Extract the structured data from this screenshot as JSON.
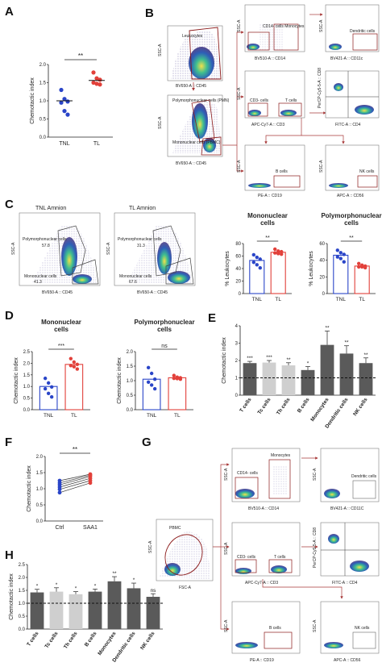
{
  "panel_labels": [
    "A",
    "B",
    "C",
    "D",
    "E",
    "F",
    "G",
    "H"
  ],
  "colors": {
    "blue": "#2a45c8",
    "red": "#e2403a",
    "dark_bar": "#5a5a5a",
    "light_bar": "#cfcfcf",
    "flow_outline": "#8b1a1a",
    "arrow": "#a83a3a"
  },
  "chart_data": [
    {
      "id": "A",
      "type": "scatter",
      "categories": [
        "TNL",
        "TL"
      ],
      "ylabel": "Chemotactic index",
      "ylim": [
        0.0,
        2.0
      ],
      "yticks": [
        "0.0",
        "0.5",
        "1.0",
        "1.5",
        "2.0"
      ],
      "significance": "**",
      "series": [
        {
          "values": [
            1.3,
            1.05,
            0.98,
            0.95,
            0.72,
            0.62
          ],
          "mean": 1.0
        },
        {
          "values": [
            1.78,
            1.62,
            1.58,
            1.5,
            1.47,
            1.45
          ],
          "mean": 1.56
        }
      ]
    },
    {
      "id": "C-mono",
      "type": "bar",
      "title": "Mononuclear cells",
      "categories": [
        "TNL",
        "TL"
      ],
      "ylabel": "% Leukocytes",
      "ylim": [
        0,
        80
      ],
      "yticks": [
        "0",
        "20",
        "40",
        "60",
        "80"
      ],
      "significance": "**",
      "values": [
        53,
        66
      ],
      "points": [
        [
          62,
          58,
          55,
          50,
          46,
          41
        ],
        [
          71,
          68,
          67,
          65,
          64,
          63
        ]
      ]
    },
    {
      "id": "C-poly",
      "type": "bar",
      "title": "Polymorphonuclear cells",
      "categories": [
        "TNL",
        "TL"
      ],
      "ylabel": "% Leukocytes",
      "ylim": [
        0,
        60
      ],
      "yticks": [
        "0",
        "20",
        "40",
        "60"
      ],
      "significance": "**",
      "values": [
        46,
        33
      ],
      "points": [
        [
          52,
          49,
          47,
          44,
          42,
          38
        ],
        [
          36,
          34,
          33,
          32,
          32,
          31
        ]
      ]
    },
    {
      "id": "D-mono",
      "type": "bar",
      "title": "Mononuclear cells",
      "categories": [
        "TNL",
        "TL"
      ],
      "ylabel": "Chemotactic index",
      "ylim": [
        0,
        2.5
      ],
      "yticks": [
        "0.0",
        "0.5",
        "1.0",
        "1.5",
        "2.0",
        "2.5"
      ],
      "significance": "***",
      "values": [
        1.0,
        1.95
      ],
      "points": [
        [
          1.35,
          1.15,
          0.98,
          0.9,
          0.7,
          0.55
        ],
        [
          2.2,
          2.05,
          1.95,
          1.9,
          1.85,
          1.75
        ]
      ]
    },
    {
      "id": "D-poly",
      "type": "bar",
      "title": "Polymorphonuclear cells",
      "categories": [
        "TNL",
        "TL"
      ],
      "ylabel": "Chemotactic index",
      "ylim": [
        0,
        2.0
      ],
      "yticks": [
        "0.0",
        "0.5",
        "1.0",
        "1.5",
        "2.0"
      ],
      "significance": "ns",
      "values": [
        1.05,
        1.1
      ],
      "points": [
        [
          1.45,
          1.25,
          1.05,
          0.95,
          0.85,
          0.72
        ],
        [
          1.18,
          1.12,
          1.1,
          1.08,
          1.07,
          1.05
        ]
      ]
    },
    {
      "id": "E",
      "type": "bar",
      "categories": [
        "T cells",
        "Tc cells",
        "Th cells",
        "B cells",
        "Monocytes",
        "Dendritic cells",
        "NK cells"
      ],
      "ylabel": "Chemotactic index",
      "ylim": [
        0,
        4
      ],
      "yticks": [
        "0",
        "1",
        "2",
        "3",
        "4"
      ],
      "values": [
        1.85,
        1.88,
        1.72,
        1.45,
        2.9,
        2.4,
        1.85
      ],
      "errors": [
        0.1,
        0.12,
        0.15,
        0.2,
        0.8,
        0.45,
        0.3
      ],
      "significance": [
        "***",
        "***",
        "**",
        "*",
        "**",
        "**",
        "**"
      ],
      "reference_line": 1.0
    },
    {
      "id": "F",
      "type": "line",
      "categories": [
        "Ctrl",
        "SAA1"
      ],
      "ylabel": "Chemotactic index",
      "ylim": [
        0.0,
        2.0
      ],
      "yticks": [
        "0.0",
        "0.5",
        "1.0",
        "1.5",
        "2.0"
      ],
      "significance": "**",
      "pairs": [
        [
          1.25,
          1.45
        ],
        [
          1.18,
          1.42
        ],
        [
          1.12,
          1.38
        ],
        [
          1.05,
          1.32
        ],
        [
          0.98,
          1.25
        ],
        [
          0.88,
          1.18
        ]
      ]
    },
    {
      "id": "H",
      "type": "bar",
      "categories": [
        "T cells",
        "Tc cells",
        "Th cells",
        "B cells",
        "Monocytes",
        "Dendritic cells",
        "NK cells"
      ],
      "ylabel": "Chemotactic index",
      "ylim": [
        0.0,
        2.5
      ],
      "yticks": [
        "0.0",
        "0.5",
        "1.0",
        "1.5",
        "2.0",
        "2.5"
      ],
      "values": [
        1.42,
        1.45,
        1.35,
        1.45,
        1.85,
        1.58,
        1.25
      ],
      "errors": [
        0.12,
        0.15,
        0.1,
        0.1,
        0.18,
        0.2,
        0.12
      ],
      "significance": [
        "*",
        "*",
        "*",
        "*",
        "**",
        "*",
        "ns"
      ],
      "reference_line": 1.0
    }
  ],
  "flow_B": {
    "leukocytes_gate": "Leukocytes",
    "pmn_gate": "Polymorphonuclear cells (PMN)",
    "mono_gate": "Mononuclear cells (PBMC)",
    "cd14_gate": "CD14- cells   Monocytes",
    "dc_gate": "Dendritic cells",
    "cd3_gate": "CD3- cells",
    "t_gate": "T cells",
    "b_gate": "B cells",
    "nk_gate": "NK cells",
    "axes": {
      "ssc": "SSC-A",
      "cd45": "BV650-A :: CD45",
      "cd14": "BV510-A :: CD14",
      "cd11c": "BV421-A :: CD11c",
      "cd3": "APC-Cy7-A :: CD3",
      "cd4": "FITC-A :: CD4",
      "cd8": "PerCP-Cy5-5-A :: CD8",
      "cd19": "PE-A :: CD19",
      "cd56": "APC-A :: CD56"
    }
  },
  "flow_C": {
    "left_title": "TNL Amnion",
    "right_title": "TL Amnion",
    "ssc": "SSC-A",
    "cd45": "BV650-A :: CD45",
    "left_poly_label": "Polymorphonuclear cells",
    "left_poly_pct": "57.8",
    "left_mono_label": "Mononuclear cells",
    "left_mono_pct": "41.3",
    "right_poly_label": "Polymorphonuclear cells",
    "right_poly_pct": "31.3",
    "right_mono_label": "Mononuclear cells",
    "right_mono_pct": "67.6"
  },
  "flow_G": {
    "pbmc_gate": "PBMC",
    "monocytes_gate": "Monocytes",
    "cd14_gate": "CD14- cells",
    "dc_gate": "Dendritic cells",
    "cd3_gate": "CD3- cells",
    "t_gate": "T cells",
    "b_gate": "B cells",
    "nk_gate": "NK cells",
    "axes": {
      "ssc": "SSC-A",
      "fsc": "FSC-A",
      "cd14": "BV510-A :: CD14",
      "cd11c": "BV421-A :: CD11C",
      "cd3": "APC-Cy7-A :: CD3",
      "cd4": "FITC-A :: CD4",
      "cd8": "PerCP-Cy5-5-A :: CD8",
      "cd19": "PE-A :: CD19",
      "cd56": "APC-A :: CD56"
    }
  }
}
